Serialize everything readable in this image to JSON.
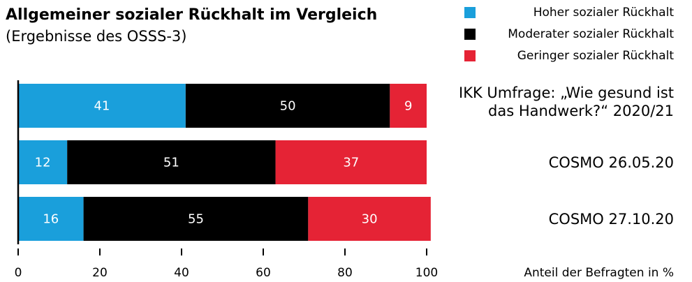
{
  "chart_data": {
    "type": "stacked-barh",
    "title": "Allgemeiner sozialer Rückhalt im Vergleich",
    "subtitle": "(Ergebnisse des OSSS-3)",
    "x_label": "Anteil der Befragten in %",
    "categories": [
      "IKK Umfrage: „Wie gesund ist\ndas Handwerk?“ 2020/21",
      "COSMO 26.05.20",
      "COSMO 27.10.20"
    ],
    "series": [
      {
        "name": "Hoher sozialer Rückhalt",
        "color": "#1a9fdb",
        "values": [
          41,
          12,
          16
        ]
      },
      {
        "name": "Moderater sozialer Rückhalt",
        "color": "#000000",
        "values": [
          50,
          51,
          55
        ]
      },
      {
        "name": "Geringer sozialer Rückhalt",
        "color": "#e52335",
        "values": [
          9,
          37,
          30
        ]
      }
    ],
    "xlim": [
      0,
      100
    ],
    "xticks": [
      0,
      20,
      40,
      60,
      80,
      100
    ],
    "legend": "top-right"
  }
}
